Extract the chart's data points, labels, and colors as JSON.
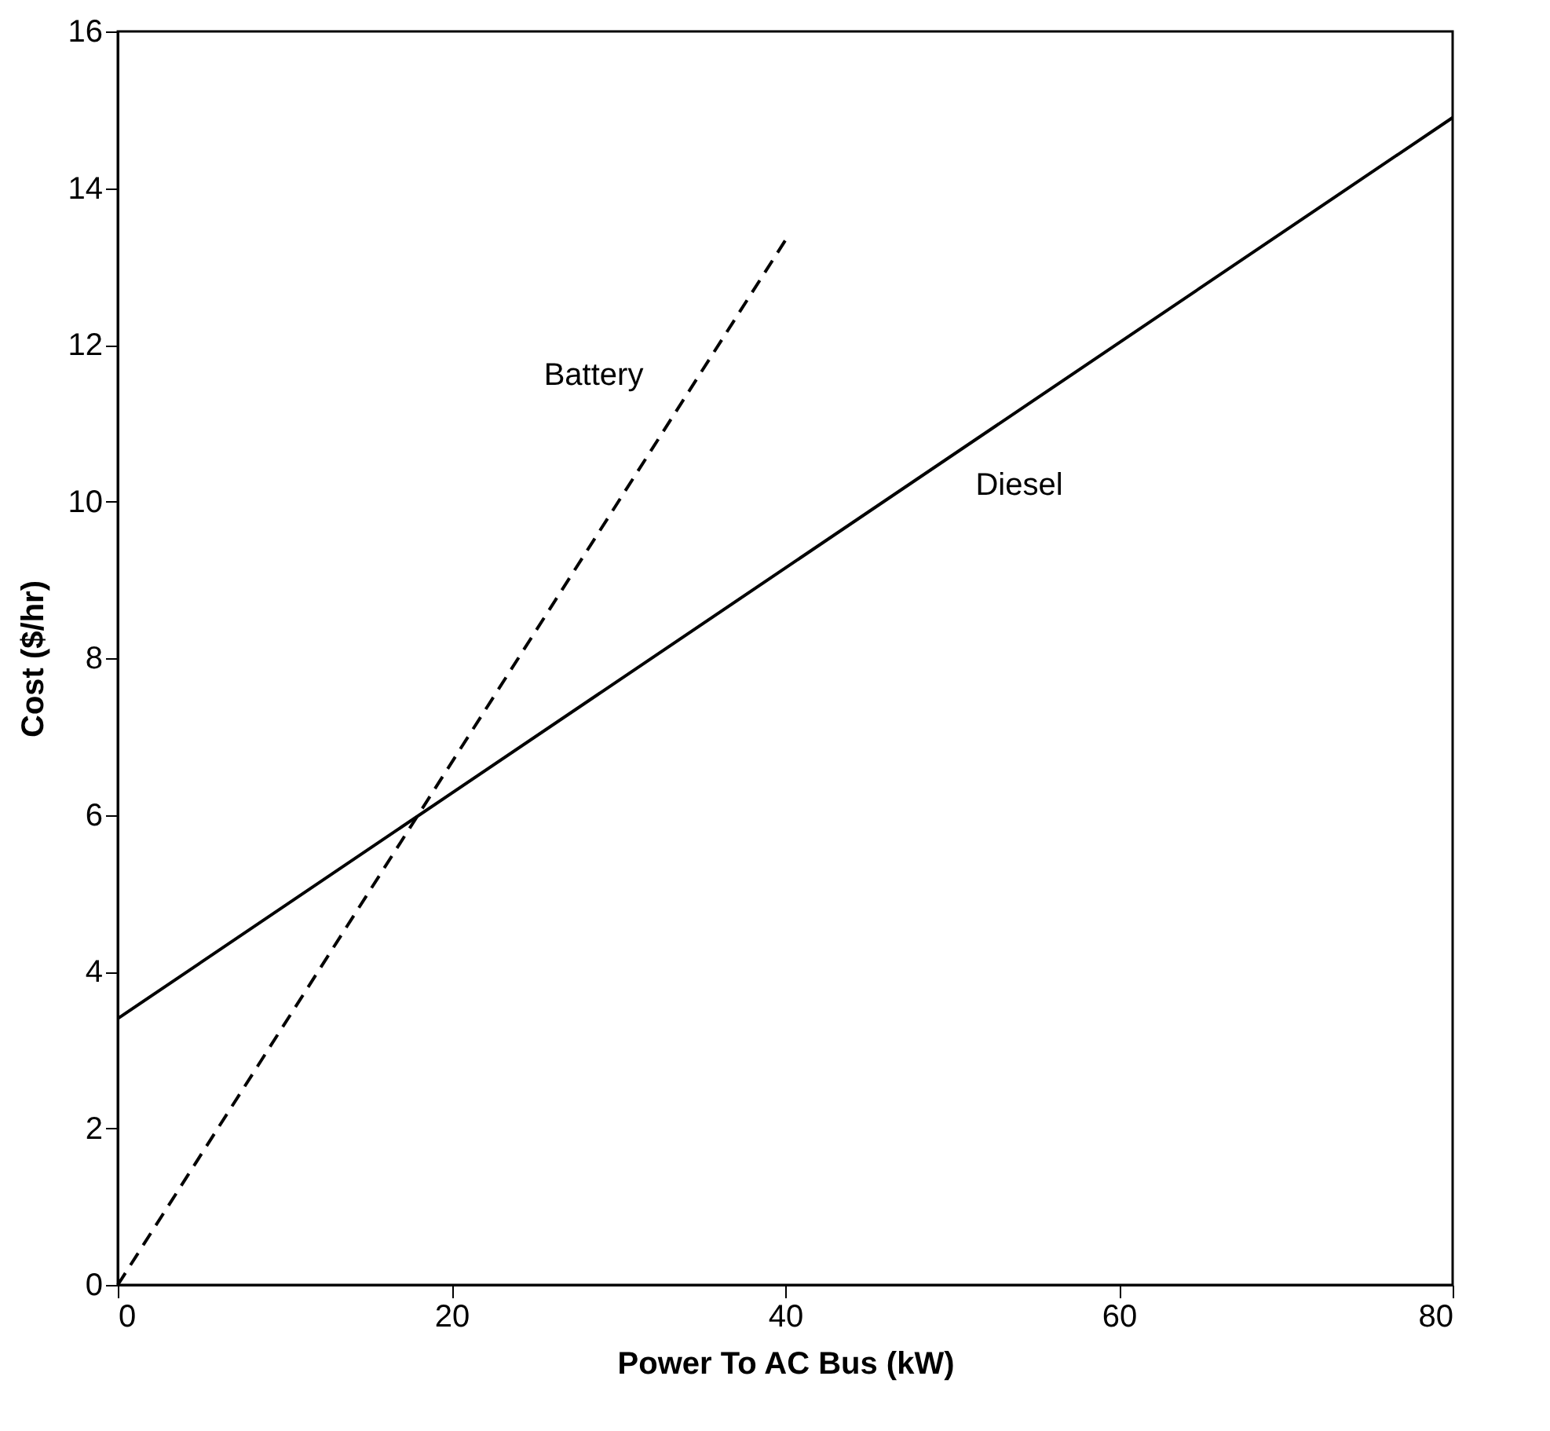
{
  "chart_data": {
    "type": "line",
    "xlabel": "Power To AC Bus (kW)",
    "ylabel": "Cost ($/hr)",
    "xlim": [
      0,
      80
    ],
    "xticks": [
      0,
      20,
      40,
      60,
      80
    ],
    "ylim": [
      0,
      16
    ],
    "yticks": [
      0,
      2,
      4,
      6,
      8,
      10,
      12,
      14,
      16
    ],
    "grid": false,
    "marker": "none",
    "series": [
      {
        "name": "Battery",
        "color": "#000000",
        "line_style": "dashed",
        "x": [
          0,
          40
        ],
        "values": [
          0,
          13.33
        ]
      },
      {
        "name": "Diesel",
        "color": "#000000",
        "line_style": "solid",
        "x": [
          0,
          80
        ],
        "values": [
          3.4,
          14.9
        ]
      }
    ]
  }
}
